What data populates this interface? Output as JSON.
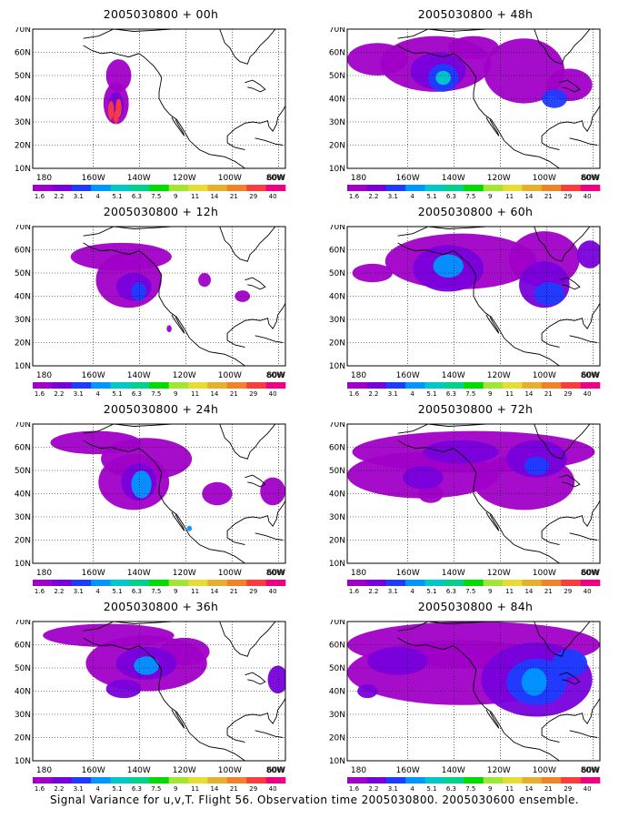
{
  "figure": {
    "caption": "Signal Variance for u,v,T. Flight 56. Observation time 2005030800. 2005030600 ensemble.",
    "init_time": "2005030800",
    "lat_ticks": [
      "70N",
      "60N",
      "50N",
      "40N",
      "30N",
      "20N",
      "10N"
    ],
    "lon_ticks": [
      "180",
      "160W",
      "140W",
      "120W",
      "100W",
      "80W",
      "60W"
    ],
    "colorbar": {
      "labels": [
        "1.6",
        "2.2",
        "3.1",
        "4",
        "5.1",
        "6.3",
        "7.5",
        "9",
        "11",
        "14",
        "21",
        "29",
        "40"
      ],
      "colors": [
        "#a000c8",
        "#7800dc",
        "#1e3cff",
        "#0096ff",
        "#00c8c8",
        "#00d28c",
        "#00dc00",
        "#a0e632",
        "#e6dc32",
        "#e6af2d",
        "#f08228",
        "#fa3c3c",
        "#f00082"
      ]
    },
    "panels": [
      {
        "id": "p00",
        "title": "2005030800 + 00h",
        "lead": "00h"
      },
      {
        "id": "p48",
        "title": "2005030800 + 48h",
        "lead": "48h"
      },
      {
        "id": "p12",
        "title": "2005030800 + 12h",
        "lead": "12h"
      },
      {
        "id": "p60",
        "title": "2005030800 + 60h",
        "lead": "60h"
      },
      {
        "id": "p24",
        "title": "2005030800 + 24h",
        "lead": "24h"
      },
      {
        "id": "p72",
        "title": "2005030800 + 72h",
        "lead": "72h"
      },
      {
        "id": "p36",
        "title": "2005030800 + 36h",
        "lead": "36h"
      },
      {
        "id": "p84",
        "title": "2005030800 + 84h",
        "lead": "84h"
      }
    ]
  }
}
